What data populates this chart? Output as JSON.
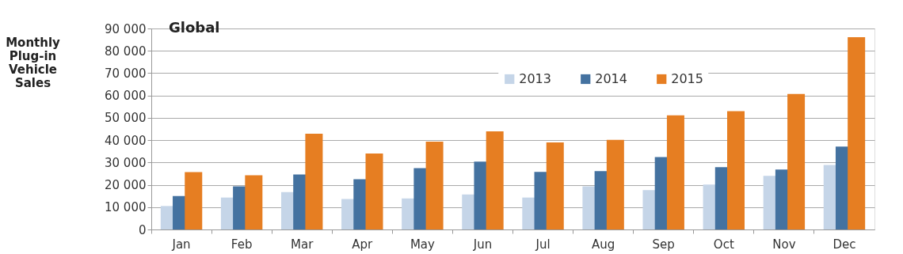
{
  "chart_data": {
    "type": "bar",
    "title": "Global",
    "ylabel": "Monthly Plug-in Vehicle Sales",
    "categories": [
      "Jan",
      "Feb",
      "Mar",
      "Apr",
      "May",
      "Jun",
      "Jul",
      "Aug",
      "Sep",
      "Oct",
      "Nov",
      "Dec"
    ],
    "series": [
      {
        "name": "2013",
        "color": "#c5d5e8",
        "values": [
          10500,
          14300,
          16700,
          13600,
          13900,
          15700,
          14300,
          19300,
          17600,
          20100,
          24000,
          28900
        ]
      },
      {
        "name": "2014",
        "color": "#4472a0",
        "values": [
          15000,
          19300,
          24600,
          22500,
          27500,
          30400,
          25800,
          26100,
          32400,
          27900,
          26800,
          37100
        ]
      },
      {
        "name": "2015",
        "color": "#e67e22",
        "values": [
          25700,
          24300,
          42900,
          34000,
          39300,
          43900,
          39000,
          40100,
          51100,
          53000,
          60700,
          86100
        ]
      }
    ],
    "ylim": [
      0,
      90000
    ],
    "yticks": [
      {
        "value": 0,
        "label": "0"
      },
      {
        "value": 10000,
        "label": "10 000"
      },
      {
        "value": 20000,
        "label": "20 000"
      },
      {
        "value": 30000,
        "label": "30 000"
      },
      {
        "value": 40000,
        "label": "40 000"
      },
      {
        "value": 50000,
        "label": "50 000"
      },
      {
        "value": 60000,
        "label": "60 000"
      },
      {
        "value": 70000,
        "label": "70 000"
      },
      {
        "value": 80000,
        "label": "80 000"
      },
      {
        "value": 90000,
        "label": "90 000"
      }
    ],
    "grid": "y",
    "legend": "top"
  }
}
